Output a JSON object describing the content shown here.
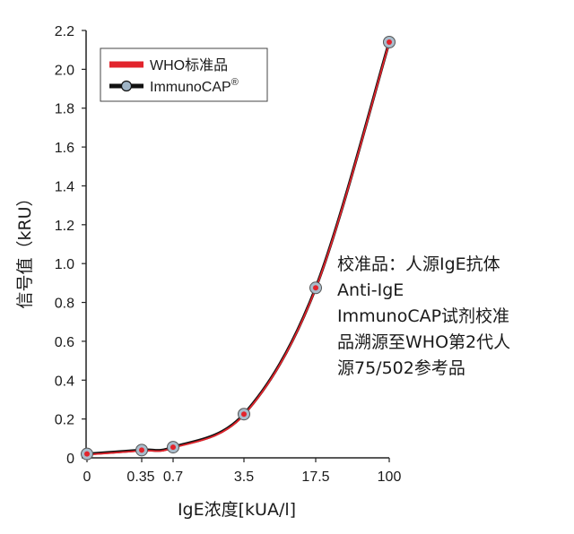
{
  "chart_data": {
    "type": "line",
    "categories": [
      "0",
      "0.35",
      "0.7",
      "3.5",
      "17.5",
      "100"
    ],
    "series": [
      {
        "name": "WHO标准品",
        "values": [
          0.02,
          0.04,
          0.055,
          0.225,
          0.875,
          2.14
        ],
        "color": "#e2242c",
        "marker": "none"
      },
      {
        "name": "ImmunoCAP",
        "values": [
          0.02,
          0.04,
          0.055,
          0.225,
          0.875,
          2.14
        ],
        "color": "#111111",
        "marker": "circle"
      }
    ],
    "legend_labels": [
      "WHO标准品",
      "ImmunoCAP"
    ],
    "legend_sup": "®",
    "legend_position": "top-left",
    "ylim": [
      0,
      2.2
    ],
    "yticks": [
      "0",
      "0.2",
      "0.4",
      "0.6",
      "0.8",
      "1.0",
      "1.2",
      "1.4",
      "1.6",
      "1.8",
      "2.0",
      "2.2"
    ],
    "ylabel": "信号值（kRU）",
    "xlabel": "IgE浓度[kUA/l]",
    "grid": false,
    "annotation_lines": [
      "校准品：人源IgE抗体",
      "Anti-IgE",
      "ImmunoCAP试剂校准",
      "品溯源至WHO第2代人",
      "源75/502参考品"
    ]
  }
}
